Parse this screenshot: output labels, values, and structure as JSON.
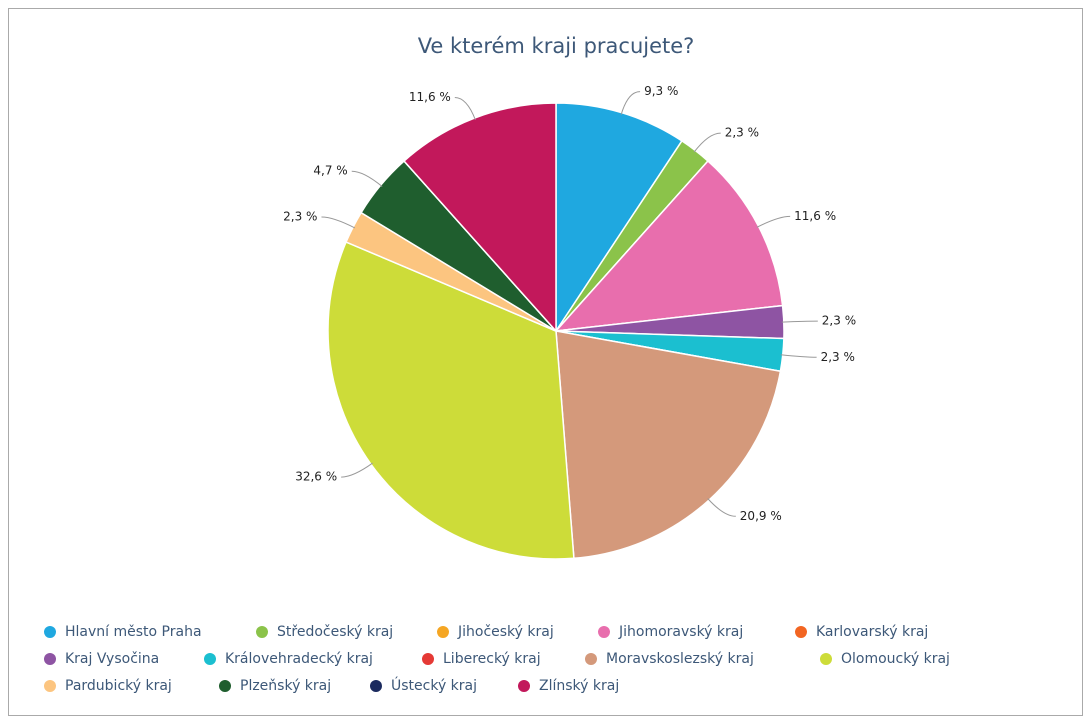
{
  "chart_data": {
    "type": "pie",
    "title": "Ve kterém kraji pracujete?",
    "categories": [
      "Hlavní město Praha",
      "Středočeský kraj",
      "Jihočeský kraj",
      "Jihomoravský kraj",
      "Karlovarský kraj",
      "Kraj Vysočina",
      "Královehradecký kraj",
      "Liberecký kraj",
      "Moravskoslezský kraj",
      "Olomoucký kraj",
      "Pardubický kraj",
      "Plzeňský kraj",
      "Ústecký kraj",
      "Zlínský kraj"
    ],
    "values": [
      9.3,
      2.3,
      0,
      11.6,
      0,
      2.3,
      2.3,
      0,
      20.9,
      32.6,
      2.3,
      4.7,
      0,
      11.6
    ],
    "value_labels": [
      "9,3 %",
      "2,3 %",
      null,
      "11,6 %",
      null,
      "2,3 %",
      "2,3 %",
      null,
      "20,9 %",
      "32,6 %",
      "2,3 %",
      "4,7 %",
      null,
      "11,6 %"
    ],
    "colors": [
      "#1fa8e0",
      "#8bc34a",
      "#f5a623",
      "#e86ead",
      "#f26522",
      "#8e54a3",
      "#1bbfd0",
      "#e53935",
      "#d4997b",
      "#cddc39",
      "#fcc580",
      "#1f5e2e",
      "#1b2a5e",
      "#c2185b"
    ],
    "legend": "bottom"
  }
}
